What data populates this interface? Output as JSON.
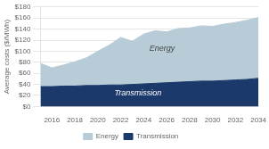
{
  "chart_data": {
    "type": "area",
    "stacked": true,
    "x": [
      2015,
      2016,
      2017,
      2018,
      2019,
      2020,
      2021,
      2022,
      2023,
      2024,
      2025,
      2026,
      2027,
      2028,
      2029,
      2030,
      2031,
      2032,
      2033,
      2034
    ],
    "series": [
      {
        "name": "Transmission",
        "color": "#1b3a6b",
        "values": [
          36,
          36,
          37,
          37,
          38,
          38,
          39,
          39,
          40,
          41,
          42,
          43,
          44,
          45,
          46,
          46,
          47,
          48,
          49,
          51
        ]
      },
      {
        "name": "Energy",
        "color": "#b8ccd8",
        "values": [
          42,
          34,
          38,
          44,
          50,
          62,
          72,
          86,
          78,
          90,
          95,
          92,
          97,
          97,
          100,
          99,
          102,
          104,
          107,
          110
        ]
      }
    ],
    "ylabel": "Average costs ($/MWh)",
    "xlim": [
      2015,
      2034
    ],
    "xticks": [
      2016,
      2018,
      2020,
      2022,
      2024,
      2026,
      2028,
      2030,
      2032,
      2034
    ],
    "ylim": [
      0,
      180
    ],
    "yticks": [
      {
        "value": 0,
        "label": "$0"
      },
      {
        "value": 20,
        "label": "$20"
      },
      {
        "value": 40,
        "label": "$40"
      },
      {
        "value": 60,
        "label": "$60"
      },
      {
        "value": 80,
        "label": "$80"
      },
      {
        "value": 100,
        "label": "$100"
      },
      {
        "value": 120,
        "label": "$120"
      },
      {
        "value": 140,
        "label": "$140"
      },
      {
        "value": 160,
        "label": "$160"
      },
      {
        "value": 180,
        "label": "$180"
      }
    ],
    "grid": "y",
    "legend": "bottom",
    "annotations": [
      {
        "text": "Energy",
        "x": 2024.5,
        "y": 105
      },
      {
        "text": "Transmission",
        "x": 2023.5,
        "y": 24
      }
    ]
  }
}
